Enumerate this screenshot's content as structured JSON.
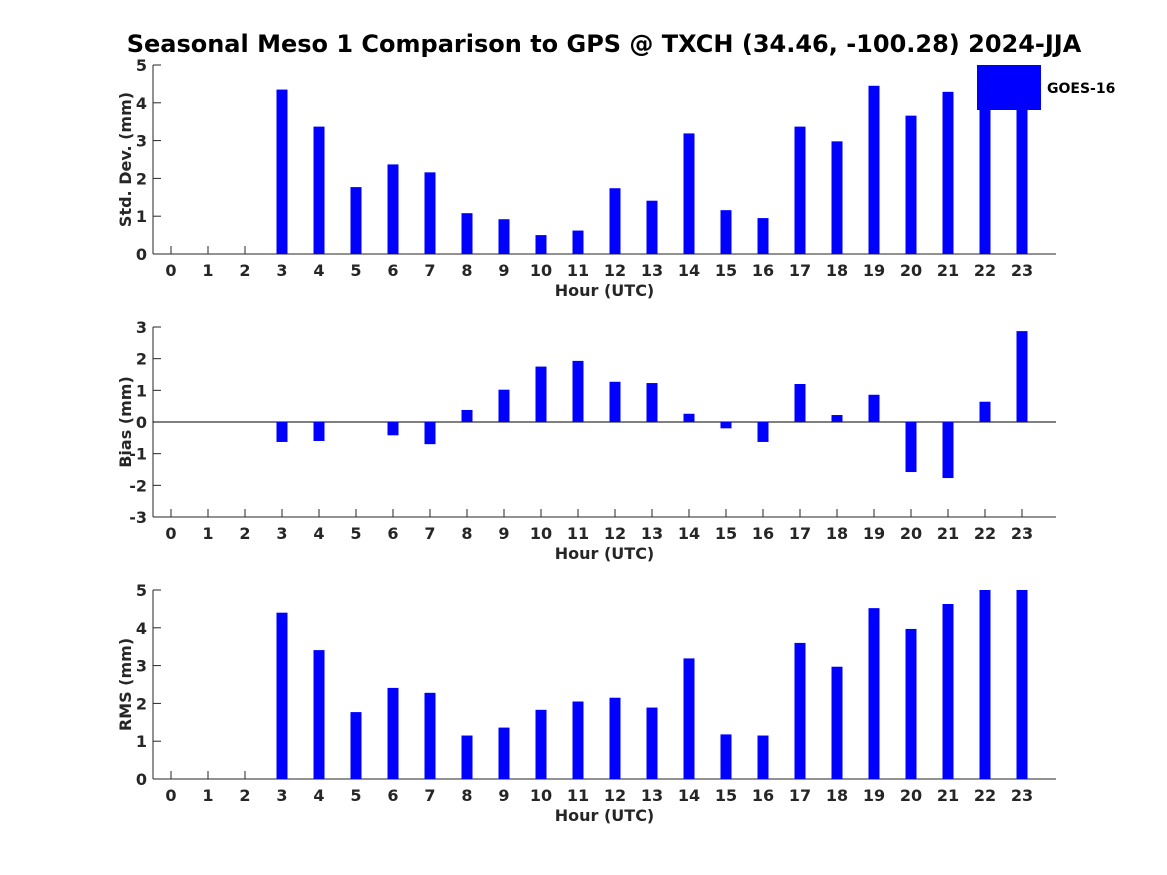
{
  "title": "Seasonal Meso 1 Comparison to GPS @ TXCH (34.46, -100.28) 2024-JJA",
  "legend": {
    "label": "GOES-16",
    "color": "#0000ff",
    "placement": "top-right"
  },
  "chart_data": [
    {
      "type": "bar",
      "ylabel": "Std. Dev. (mm)",
      "xlabel": "Hour (UTC)",
      "ylim": [
        0,
        5
      ],
      "yticks": [
        0,
        1,
        2,
        3,
        4,
        5
      ],
      "categories": [
        "0",
        "1",
        "2",
        "3",
        "4",
        "5",
        "6",
        "7",
        "8",
        "9",
        "10",
        "11",
        "12",
        "13",
        "14",
        "15",
        "16",
        "17",
        "18",
        "19",
        "20",
        "21",
        "22",
        "23"
      ],
      "values": [
        0,
        0,
        0,
        4.35,
        3.37,
        1.77,
        2.37,
        2.16,
        1.08,
        0.92,
        0.5,
        0.62,
        1.74,
        1.41,
        3.19,
        1.16,
        0.95,
        3.37,
        2.98,
        4.45,
        3.66,
        4.29,
        5.0,
        5.0
      ]
    },
    {
      "type": "bar",
      "ylabel": "Bias (mm)",
      "xlabel": "Hour (UTC)",
      "ylim": [
        -3,
        3
      ],
      "yticks": [
        -3,
        -2,
        -1,
        0,
        1,
        2,
        3
      ],
      "categories": [
        "0",
        "1",
        "2",
        "3",
        "4",
        "5",
        "6",
        "7",
        "8",
        "9",
        "10",
        "11",
        "12",
        "13",
        "14",
        "15",
        "16",
        "17",
        "18",
        "19",
        "20",
        "21",
        "22",
        "23"
      ],
      "values": [
        0,
        0,
        0,
        -0.63,
        -0.6,
        0,
        -0.42,
        -0.7,
        0.38,
        1.02,
        1.75,
        1.93,
        1.27,
        1.23,
        0.26,
        -0.2,
        -0.63,
        1.2,
        0.22,
        0.86,
        -1.58,
        -1.77,
        0.64,
        2.87
      ]
    },
    {
      "type": "bar",
      "ylabel": "RMS (mm)",
      "xlabel": "Hour (UTC)",
      "ylim": [
        0,
        5
      ],
      "yticks": [
        0,
        1,
        2,
        3,
        4,
        5
      ],
      "categories": [
        "0",
        "1",
        "2",
        "3",
        "4",
        "5",
        "6",
        "7",
        "8",
        "9",
        "10",
        "11",
        "12",
        "13",
        "14",
        "15",
        "16",
        "17",
        "18",
        "19",
        "20",
        "21",
        "22",
        "23"
      ],
      "values": [
        0,
        0,
        0,
        4.4,
        3.41,
        1.77,
        2.41,
        2.28,
        1.15,
        1.36,
        1.83,
        2.05,
        2.15,
        1.89,
        3.19,
        1.18,
        1.15,
        3.6,
        2.97,
        4.52,
        3.97,
        4.63,
        5.0,
        5.0
      ]
    }
  ]
}
